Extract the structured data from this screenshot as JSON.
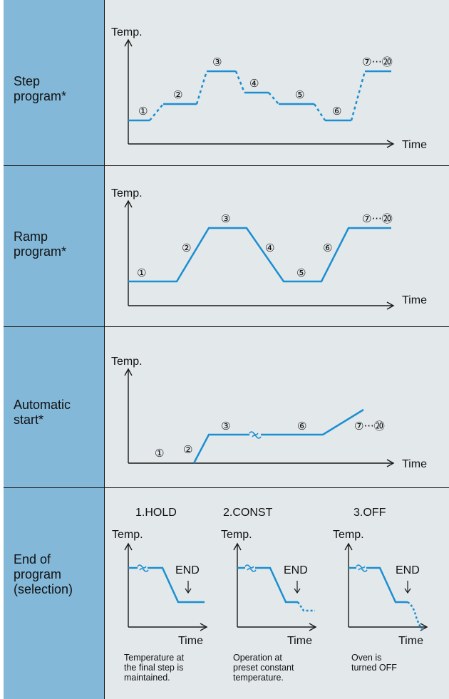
{
  "rows": {
    "step": {
      "label": "Step\nprogram*"
    },
    "ramp": {
      "label": "Ramp\nprogram*"
    },
    "auto": {
      "label": "Automatic\nstart*"
    },
    "end": {
      "label": "End of\nprogram\n(selection)"
    }
  },
  "axis": {
    "y_label": "Temp.",
    "x_label": "Time"
  },
  "markers": {
    "m1": "①",
    "m2": "②",
    "m3": "③",
    "m4": "④",
    "m5": "⑤",
    "m6": "⑥",
    "m7_20": "⑦···⑳"
  },
  "end_options": {
    "hold": {
      "title": "1.HOLD",
      "end_label": "END",
      "description": "Temperature at\nthe final step is\nmaintained."
    },
    "const": {
      "title": "2.CONST",
      "end_label": "END",
      "description": "Operation at\npreset constant\ntemperature."
    },
    "off": {
      "title": "3.OFF",
      "end_label": "END",
      "description": "Oven is\nturned OFF"
    }
  },
  "colors": {
    "left_column": "#83b8d9",
    "panel": "#e3e8ea",
    "curve": "#1a8fd1",
    "axis": "#1a1a1a"
  }
}
